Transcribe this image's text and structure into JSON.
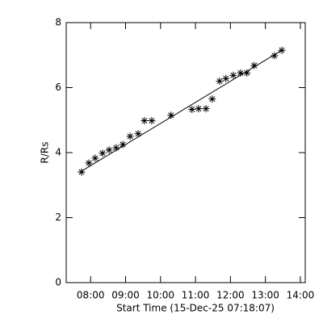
{
  "chart_data": {
    "type": "scatter",
    "xlabel": "Start Time (15-Dec-25 07:18:07)",
    "ylabel": "R/Rs",
    "xlim": [
      7.302,
      14.14
    ],
    "ylim": [
      0,
      8
    ],
    "xticks": [
      {
        "value": 8,
        "label": "08:00"
      },
      {
        "value": 9,
        "label": "09:00"
      },
      {
        "value": 10,
        "label": "10:00"
      },
      {
        "value": 11,
        "label": "11:00"
      },
      {
        "value": 12,
        "label": "12:00"
      },
      {
        "value": 13,
        "label": "13:00"
      },
      {
        "value": 14,
        "label": "14:00"
      }
    ],
    "yticks": [
      0,
      2,
      4,
      6,
      8
    ],
    "color": "#000000",
    "series": [
      {
        "marker": "asterisk",
        "x": [
          7.74,
          7.95,
          8.13,
          8.34,
          8.53,
          8.73,
          8.92,
          9.13,
          9.36,
          9.54,
          9.75,
          10.3,
          10.9,
          11.09,
          11.3,
          11.48,
          11.69,
          11.87,
          12.08,
          12.29,
          12.47,
          12.68,
          13.26,
          13.47
        ],
        "values": [
          3.4,
          3.68,
          3.83,
          3.98,
          4.08,
          4.15,
          4.25,
          4.5,
          4.58,
          4.98,
          4.98,
          5.15,
          5.33,
          5.35,
          5.35,
          5.65,
          6.2,
          6.28,
          6.38,
          6.45,
          6.45,
          6.68,
          6.98,
          7.15
        ]
      },
      {
        "marker": "line",
        "x": [
          7.74,
          13.47
        ],
        "values": [
          3.43,
          7.15
        ]
      }
    ]
  }
}
